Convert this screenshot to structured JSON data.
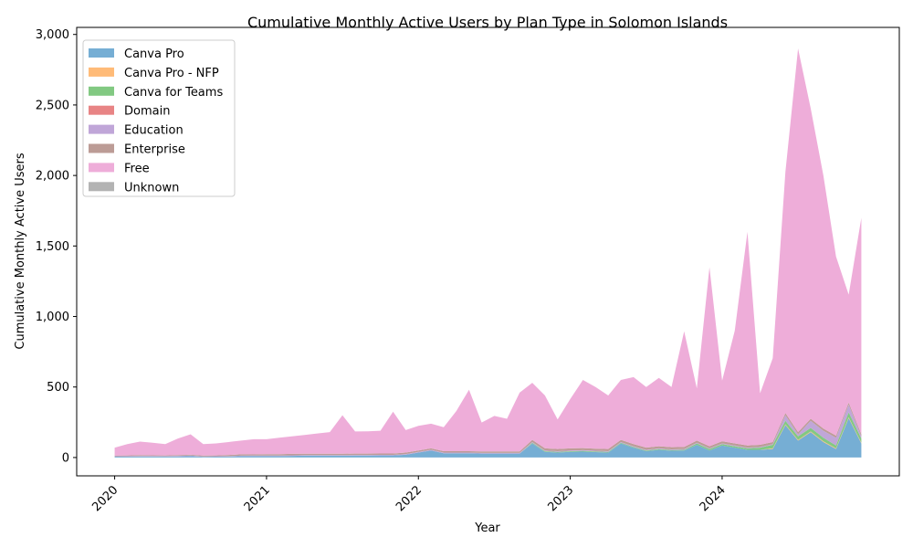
{
  "chart_data": {
    "type": "area",
    "stacked": true,
    "title": "Cumulative Monthly Active Users by Plan Type in Solomon Islands",
    "xlabel": "Year",
    "ylabel": "Cumulative Monthly Active Users",
    "ylim": [
      -130,
      3050
    ],
    "y_ticks": [
      0,
      500,
      1000,
      1500,
      2000,
      2500,
      3000
    ],
    "y_tick_labels": [
      "0",
      "500",
      "1,000",
      "1,500",
      "2,000",
      "2,500",
      "3,000"
    ],
    "x_tick_labels": [
      "2020",
      "2021",
      "2022",
      "2023",
      "2024"
    ],
    "x_tick_positions": [
      0,
      12,
      24,
      36,
      48
    ],
    "xlim": [
      -3,
      62
    ],
    "legend_position": "upper left",
    "x": [
      "2020-01",
      "2020-02",
      "2020-03",
      "2020-04",
      "2020-05",
      "2020-06",
      "2020-07",
      "2020-08",
      "2020-09",
      "2020-10",
      "2020-11",
      "2020-12",
      "2021-01",
      "2021-02",
      "2021-03",
      "2021-04",
      "2021-05",
      "2021-06",
      "2021-07",
      "2021-08",
      "2021-09",
      "2021-10",
      "2021-11",
      "2021-12",
      "2022-01",
      "2022-02",
      "2022-03",
      "2022-04",
      "2022-05",
      "2022-06",
      "2022-07",
      "2022-08",
      "2022-09",
      "2022-10",
      "2022-11",
      "2022-12",
      "2023-01",
      "2023-02",
      "2023-03",
      "2023-04",
      "2023-05",
      "2023-06",
      "2023-07",
      "2023-08",
      "2023-09",
      "2023-10",
      "2023-11",
      "2023-12",
      "2024-01",
      "2024-02",
      "2024-03",
      "2024-04",
      "2024-05",
      "2024-06",
      "2024-07",
      "2024-08",
      "2024-09",
      "2024-10",
      "2024-11",
      "2024-12"
    ],
    "series": [
      {
        "name": "Canva Pro",
        "color": "#76aed4",
        "values": [
          6,
          6,
          7,
          7,
          7,
          8,
          10,
          5,
          6,
          7,
          10,
          10,
          10,
          10,
          12,
          13,
          13,
          13,
          13,
          14,
          14,
          15,
          15,
          20,
          35,
          50,
          30,
          30,
          30,
          28,
          28,
          28,
          28,
          100,
          40,
          35,
          40,
          42,
          38,
          35,
          100,
          70,
          45,
          55,
          48,
          50,
          90,
          50,
          85,
          70,
          55,
          55,
          60,
          230,
          120,
          180,
          110,
          60,
          280,
          100
        ]
      },
      {
        "name": "Canva Pro - NFP",
        "color": "#ffbb78",
        "values": [
          0,
          0,
          0,
          0,
          0,
          0,
          0,
          0,
          0,
          0,
          0,
          0,
          0,
          0,
          0,
          0,
          0,
          0,
          0,
          0,
          0,
          0,
          0,
          0,
          0,
          0,
          0,
          0,
          0,
          0,
          0,
          0,
          0,
          0,
          0,
          0,
          0,
          0,
          0,
          0,
          0,
          0,
          0,
          0,
          0,
          0,
          0,
          0,
          0,
          0,
          0,
          0,
          5,
          5,
          5,
          5,
          5,
          5,
          5,
          5
        ]
      },
      {
        "name": "Canva for Teams",
        "color": "#82c982",
        "values": [
          0,
          0,
          0,
          0,
          0,
          0,
          0,
          0,
          0,
          0,
          0,
          0,
          0,
          0,
          0,
          0,
          0,
          0,
          0,
          0,
          0,
          0,
          0,
          0,
          0,
          0,
          0,
          0,
          0,
          0,
          0,
          0,
          0,
          5,
          5,
          5,
          5,
          5,
          5,
          5,
          5,
          5,
          5,
          5,
          5,
          5,
          10,
          10,
          10,
          10,
          10,
          15,
          25,
          25,
          25,
          25,
          25,
          20,
          35,
          30
        ]
      },
      {
        "name": "Domain",
        "color": "#e88485",
        "values": [
          0,
          0,
          0,
          0,
          0,
          0,
          0,
          0,
          0,
          0,
          0,
          0,
          0,
          0,
          0,
          0,
          0,
          0,
          0,
          0,
          0,
          0,
          0,
          0,
          0,
          0,
          0,
          0,
          0,
          0,
          0,
          0,
          0,
          0,
          0,
          0,
          0,
          0,
          0,
          0,
          0,
          0,
          0,
          0,
          0,
          0,
          0,
          0,
          0,
          0,
          0,
          0,
          0,
          0,
          0,
          0,
          0,
          0,
          0,
          0
        ]
      },
      {
        "name": "Education",
        "color": "#c0a6d8",
        "values": [
          3,
          4,
          4,
          4,
          3,
          4,
          4,
          3,
          3,
          3,
          3,
          4,
          4,
          4,
          4,
          4,
          4,
          4,
          4,
          4,
          4,
          4,
          4,
          5,
          5,
          5,
          5,
          5,
          5,
          5,
          5,
          5,
          5,
          5,
          5,
          5,
          5,
          5,
          5,
          5,
          5,
          5,
          5,
          5,
          5,
          5,
          5,
          5,
          5,
          5,
          5,
          5,
          5,
          40,
          15,
          50,
          50,
          55,
          55,
          15
        ]
      },
      {
        "name": "Enterprise",
        "color": "#bc9c96",
        "values": [
          5,
          5,
          6,
          5,
          5,
          5,
          6,
          6,
          6,
          8,
          10,
          8,
          10,
          10,
          10,
          10,
          10,
          10,
          10,
          10,
          10,
          10,
          10,
          10,
          10,
          10,
          10,
          10,
          10,
          10,
          10,
          10,
          10,
          15,
          15,
          15,
          15,
          15,
          15,
          15,
          15,
          15,
          15,
          15,
          15,
          15,
          15,
          15,
          15,
          15,
          15,
          15,
          15,
          15,
          15,
          15,
          15,
          15,
          15,
          15
        ]
      },
      {
        "name": "Free",
        "color": "#eeadd9",
        "values": [
          56,
          80,
          96,
          89,
          80,
          118,
          145,
          81,
          85,
          92,
          97,
          108,
          106,
          116,
          124,
          133,
          143,
          153,
          273,
          157,
          158,
          161,
          296,
          160,
          175,
          175,
          170,
          285,
          435,
          205,
          252,
          232,
          417,
          405,
          375,
          210,
          350,
          483,
          437,
          380,
          425,
          475,
          430,
          485,
          427,
          820,
          370,
          1270,
          430,
          800,
          1515,
          365,
          595,
          1710,
          2720,
          2200,
          1795,
          1270,
          765,
          1535
        ]
      },
      {
        "name": "Unknown",
        "color": "#b3b3b3",
        "values": [
          0,
          0,
          0,
          0,
          0,
          0,
          0,
          0,
          0,
          0,
          0,
          0,
          0,
          0,
          0,
          0,
          0,
          0,
          0,
          0,
          0,
          0,
          0,
          0,
          0,
          0,
          0,
          0,
          0,
          0,
          0,
          0,
          0,
          0,
          0,
          0,
          0,
          0,
          0,
          0,
          0,
          0,
          0,
          0,
          0,
          0,
          0,
          0,
          0,
          0,
          0,
          0,
          0,
          0,
          0,
          0,
          0,
          0,
          0,
          0
        ]
      }
    ]
  }
}
